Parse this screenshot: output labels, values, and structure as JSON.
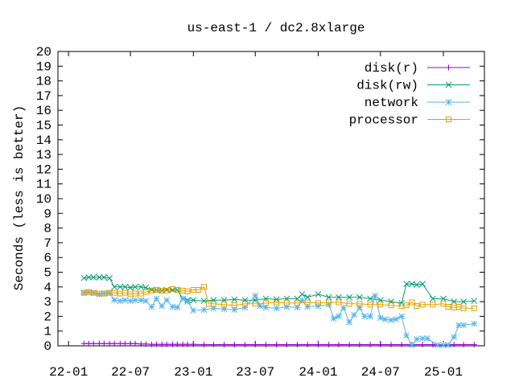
{
  "chart_data": {
    "type": "line",
    "title": "us-east-1 / dc2.8xlarge",
    "xlabel": "",
    "ylabel": "Seconds (less is better)",
    "ylim": [
      0,
      20
    ],
    "yticks": [
      0,
      1,
      2,
      3,
      4,
      5,
      6,
      7,
      8,
      9,
      10,
      11,
      12,
      13,
      14,
      15,
      16,
      17,
      18,
      19,
      20
    ],
    "xlim": [
      "2021-12-01",
      "2025-05-01"
    ],
    "xticks": [
      {
        "date": "2022-01-01",
        "label": "22-01"
      },
      {
        "date": "2022-07-01",
        "label": "22-07"
      },
      {
        "date": "2023-01-01",
        "label": "23-01"
      },
      {
        "date": "2023-07-01",
        "label": "23-07"
      },
      {
        "date": "2024-01-01",
        "label": "24-01"
      },
      {
        "date": "2024-07-01",
        "label": "24-07"
      },
      {
        "date": "2025-01-01",
        "label": "25-01"
      }
    ],
    "grid": false,
    "legend": "top-right",
    "series": [
      {
        "name": "disk(r)",
        "color": "#9400d3",
        "marker": "plus",
        "points": [
          [
            "2022-02-15",
            0.15
          ],
          [
            "2022-03-01",
            0.15
          ],
          [
            "2022-03-15",
            0.15
          ],
          [
            "2022-04-01",
            0.15
          ],
          [
            "2022-04-15",
            0.15
          ],
          [
            "2022-05-01",
            0.15
          ],
          [
            "2022-05-15",
            0.15
          ],
          [
            "2022-06-01",
            0.15
          ],
          [
            "2022-06-15",
            0.15
          ],
          [
            "2022-07-01",
            0.15
          ],
          [
            "2022-07-15",
            0.15
          ],
          [
            "2022-08-01",
            0.12
          ],
          [
            "2022-08-15",
            0.12
          ],
          [
            "2022-09-01",
            0.1
          ],
          [
            "2022-09-15",
            0.1
          ],
          [
            "2022-10-01",
            0.1
          ],
          [
            "2022-10-15",
            0.1
          ],
          [
            "2022-11-01",
            0.1
          ],
          [
            "2022-11-15",
            0.1
          ],
          [
            "2022-12-01",
            0.1
          ],
          [
            "2022-12-15",
            0.1
          ],
          [
            "2023-01-01",
            0.1
          ],
          [
            "2023-02-01",
            0.08
          ],
          [
            "2023-03-01",
            0.08
          ],
          [
            "2023-04-01",
            0.08
          ],
          [
            "2023-05-01",
            0.08
          ],
          [
            "2023-06-01",
            0.08
          ],
          [
            "2023-07-01",
            0.08
          ],
          [
            "2023-08-01",
            0.08
          ],
          [
            "2023-09-01",
            0.08
          ],
          [
            "2023-10-01",
            0.08
          ],
          [
            "2023-11-01",
            0.08
          ],
          [
            "2023-12-01",
            0.08
          ],
          [
            "2024-01-01",
            0.08
          ],
          [
            "2024-02-01",
            0.08
          ],
          [
            "2024-03-01",
            0.08
          ],
          [
            "2024-04-01",
            0.08
          ],
          [
            "2024-05-01",
            0.08
          ],
          [
            "2024-06-01",
            0.08
          ],
          [
            "2024-07-01",
            0.08
          ],
          [
            "2024-08-01",
            0.08
          ],
          [
            "2024-09-01",
            0.08
          ],
          [
            "2024-10-01",
            0.08
          ],
          [
            "2024-11-01",
            0.08
          ],
          [
            "2024-12-01",
            0.08
          ],
          [
            "2025-01-01",
            0.08
          ],
          [
            "2025-02-01",
            0.08
          ],
          [
            "2025-03-01",
            0.08
          ],
          [
            "2025-04-01",
            0.08
          ]
        ]
      },
      {
        "name": "disk(rw)",
        "color": "#009e73",
        "marker": "cross",
        "points": [
          [
            "2022-02-15",
            4.6
          ],
          [
            "2022-03-01",
            4.65
          ],
          [
            "2022-03-15",
            4.65
          ],
          [
            "2022-04-01",
            4.65
          ],
          [
            "2022-04-15",
            4.65
          ],
          [
            "2022-05-01",
            4.6
          ],
          [
            "2022-05-15",
            4.0
          ],
          [
            "2022-06-01",
            4.0
          ],
          [
            "2022-06-15",
            4.0
          ],
          [
            "2022-07-01",
            3.95
          ],
          [
            "2022-07-15",
            4.0
          ],
          [
            "2022-08-01",
            4.0
          ],
          [
            "2022-08-15",
            3.95
          ],
          [
            "2022-09-01",
            3.8
          ],
          [
            "2022-09-15",
            3.8
          ],
          [
            "2022-10-01",
            3.75
          ],
          [
            "2022-10-15",
            3.8
          ],
          [
            "2022-11-01",
            3.8
          ],
          [
            "2022-11-15",
            3.8
          ],
          [
            "2022-12-01",
            3.2
          ],
          [
            "2022-12-15",
            3.1
          ],
          [
            "2023-01-01",
            3.1
          ],
          [
            "2023-02-01",
            3.05
          ],
          [
            "2023-03-01",
            3.1
          ],
          [
            "2023-04-01",
            3.1
          ],
          [
            "2023-05-01",
            3.15
          ],
          [
            "2023-06-01",
            3.1
          ],
          [
            "2023-07-01",
            3.1
          ],
          [
            "2023-08-01",
            3.2
          ],
          [
            "2023-09-01",
            3.15
          ],
          [
            "2023-10-01",
            3.2
          ],
          [
            "2023-11-01",
            3.2
          ],
          [
            "2023-11-15",
            3.5
          ],
          [
            "2023-12-01",
            3.3
          ],
          [
            "2024-01-01",
            3.5
          ],
          [
            "2024-02-01",
            3.3
          ],
          [
            "2024-03-01",
            3.3
          ],
          [
            "2024-04-01",
            3.3
          ],
          [
            "2024-05-01",
            3.3
          ],
          [
            "2024-06-01",
            3.2
          ],
          [
            "2024-07-01",
            3.1
          ],
          [
            "2024-08-01",
            3.0
          ],
          [
            "2024-09-01",
            2.9
          ],
          [
            "2024-09-15",
            4.2
          ],
          [
            "2024-10-01",
            4.2
          ],
          [
            "2024-10-15",
            4.15
          ],
          [
            "2024-11-01",
            4.2
          ],
          [
            "2024-12-01",
            3.2
          ],
          [
            "2025-01-01",
            3.2
          ],
          [
            "2025-02-01",
            3.0
          ],
          [
            "2025-03-01",
            3.0
          ],
          [
            "2025-04-01",
            3.05
          ]
        ]
      },
      {
        "name": "network",
        "color": "#56b4e9",
        "marker": "star",
        "points": [
          [
            "2022-02-15",
            3.6
          ],
          [
            "2022-03-01",
            3.65
          ],
          [
            "2022-03-15",
            3.6
          ],
          [
            "2022-04-01",
            3.5
          ],
          [
            "2022-04-15",
            3.55
          ],
          [
            "2022-05-01",
            3.6
          ],
          [
            "2022-05-15",
            3.1
          ],
          [
            "2022-06-01",
            3.05
          ],
          [
            "2022-06-15",
            3.1
          ],
          [
            "2022-07-01",
            3.05
          ],
          [
            "2022-07-15",
            3.1
          ],
          [
            "2022-08-01",
            3.1
          ],
          [
            "2022-08-15",
            3.05
          ],
          [
            "2022-09-01",
            2.65
          ],
          [
            "2022-09-15",
            3.2
          ],
          [
            "2022-10-01",
            2.7
          ],
          [
            "2022-10-15",
            3.1
          ],
          [
            "2022-11-01",
            2.65
          ],
          [
            "2022-11-15",
            2.6
          ],
          [
            "2022-12-01",
            3.2
          ],
          [
            "2022-12-15",
            3.0
          ],
          [
            "2023-01-01",
            2.4
          ],
          [
            "2023-02-01",
            2.45
          ],
          [
            "2023-03-01",
            2.55
          ],
          [
            "2023-04-01",
            2.5
          ],
          [
            "2023-05-01",
            2.45
          ],
          [
            "2023-06-01",
            2.6
          ],
          [
            "2023-07-01",
            3.4
          ],
          [
            "2023-07-15",
            2.7
          ],
          [
            "2023-08-01",
            2.6
          ],
          [
            "2023-09-01",
            2.55
          ],
          [
            "2023-10-01",
            2.65
          ],
          [
            "2023-11-01",
            2.6
          ],
          [
            "2023-11-15",
            3.1
          ],
          [
            "2023-12-01",
            2.65
          ],
          [
            "2024-01-01",
            2.7
          ],
          [
            "2024-02-01",
            2.8
          ],
          [
            "2024-02-15",
            1.85
          ],
          [
            "2024-03-01",
            2.0
          ],
          [
            "2024-03-15",
            2.6
          ],
          [
            "2024-04-01",
            1.6
          ],
          [
            "2024-04-15",
            2.1
          ],
          [
            "2024-05-01",
            2.6
          ],
          [
            "2024-05-15",
            2.0
          ],
          [
            "2024-06-01",
            2.0
          ],
          [
            "2024-06-15",
            3.4
          ],
          [
            "2024-07-01",
            1.9
          ],
          [
            "2024-07-15",
            1.8
          ],
          [
            "2024-08-01",
            1.75
          ],
          [
            "2024-08-15",
            1.8
          ],
          [
            "2024-09-01",
            2.0
          ],
          [
            "2024-09-15",
            0.7
          ],
          [
            "2024-10-01",
            0.05
          ],
          [
            "2024-10-15",
            0.45
          ],
          [
            "2024-11-01",
            0.5
          ],
          [
            "2024-11-15",
            0.5
          ],
          [
            "2024-12-15",
            0.05
          ],
          [
            "2025-01-01",
            0.05
          ],
          [
            "2025-01-15",
            0.05
          ],
          [
            "2025-02-01",
            0.6
          ],
          [
            "2025-02-15",
            1.4
          ],
          [
            "2025-03-01",
            1.4
          ],
          [
            "2025-04-01",
            1.5
          ]
        ]
      },
      {
        "name": "processor",
        "color": "#e69f00",
        "marker": "square",
        "points": [
          [
            "2022-02-15",
            3.6
          ],
          [
            "2022-03-01",
            3.65
          ],
          [
            "2022-03-15",
            3.6
          ],
          [
            "2022-04-01",
            3.55
          ],
          [
            "2022-04-15",
            3.55
          ],
          [
            "2022-05-01",
            3.6
          ],
          [
            "2022-05-15",
            3.6
          ],
          [
            "2022-06-01",
            3.55
          ],
          [
            "2022-06-15",
            3.6
          ],
          [
            "2022-07-01",
            3.5
          ],
          [
            "2022-07-15",
            3.55
          ],
          [
            "2022-08-01",
            3.55
          ],
          [
            "2022-08-15",
            3.65
          ],
          [
            "2022-09-01",
            3.75
          ],
          [
            "2022-09-15",
            3.8
          ],
          [
            "2022-10-01",
            3.75
          ],
          [
            "2022-10-15",
            3.75
          ],
          [
            "2022-11-01",
            3.85
          ],
          [
            "2022-11-15",
            3.8
          ],
          [
            "2022-12-01",
            3.75
          ],
          [
            "2022-12-15",
            3.7
          ],
          [
            "2023-01-01",
            3.8
          ],
          [
            "2023-01-15",
            3.8
          ],
          [
            "2023-02-01",
            4.0
          ],
          [
            "2023-02-15",
            2.85
          ],
          [
            "2023-03-01",
            2.85
          ],
          [
            "2023-04-01",
            2.8
          ],
          [
            "2023-05-01",
            2.75
          ],
          [
            "2023-06-01",
            2.85
          ],
          [
            "2023-07-01",
            2.85
          ],
          [
            "2023-08-01",
            2.9
          ],
          [
            "2023-09-01",
            2.95
          ],
          [
            "2023-10-01",
            2.9
          ],
          [
            "2023-11-01",
            2.9
          ],
          [
            "2023-12-01",
            2.95
          ],
          [
            "2024-01-01",
            2.9
          ],
          [
            "2024-02-01",
            2.95
          ],
          [
            "2024-03-01",
            2.95
          ],
          [
            "2024-04-01",
            2.85
          ],
          [
            "2024-05-01",
            2.85
          ],
          [
            "2024-06-01",
            2.8
          ],
          [
            "2024-07-01",
            2.8
          ],
          [
            "2024-08-01",
            2.75
          ],
          [
            "2024-09-01",
            2.7
          ],
          [
            "2024-09-15",
            2.75
          ],
          [
            "2024-10-01",
            2.95
          ],
          [
            "2024-10-15",
            2.7
          ],
          [
            "2024-11-01",
            2.8
          ],
          [
            "2024-12-01",
            2.8
          ],
          [
            "2025-01-01",
            2.85
          ],
          [
            "2025-01-15",
            2.65
          ],
          [
            "2025-02-01",
            2.6
          ],
          [
            "2025-02-15",
            2.65
          ],
          [
            "2025-03-01",
            2.55
          ],
          [
            "2025-04-01",
            2.55
          ]
        ]
      }
    ]
  }
}
